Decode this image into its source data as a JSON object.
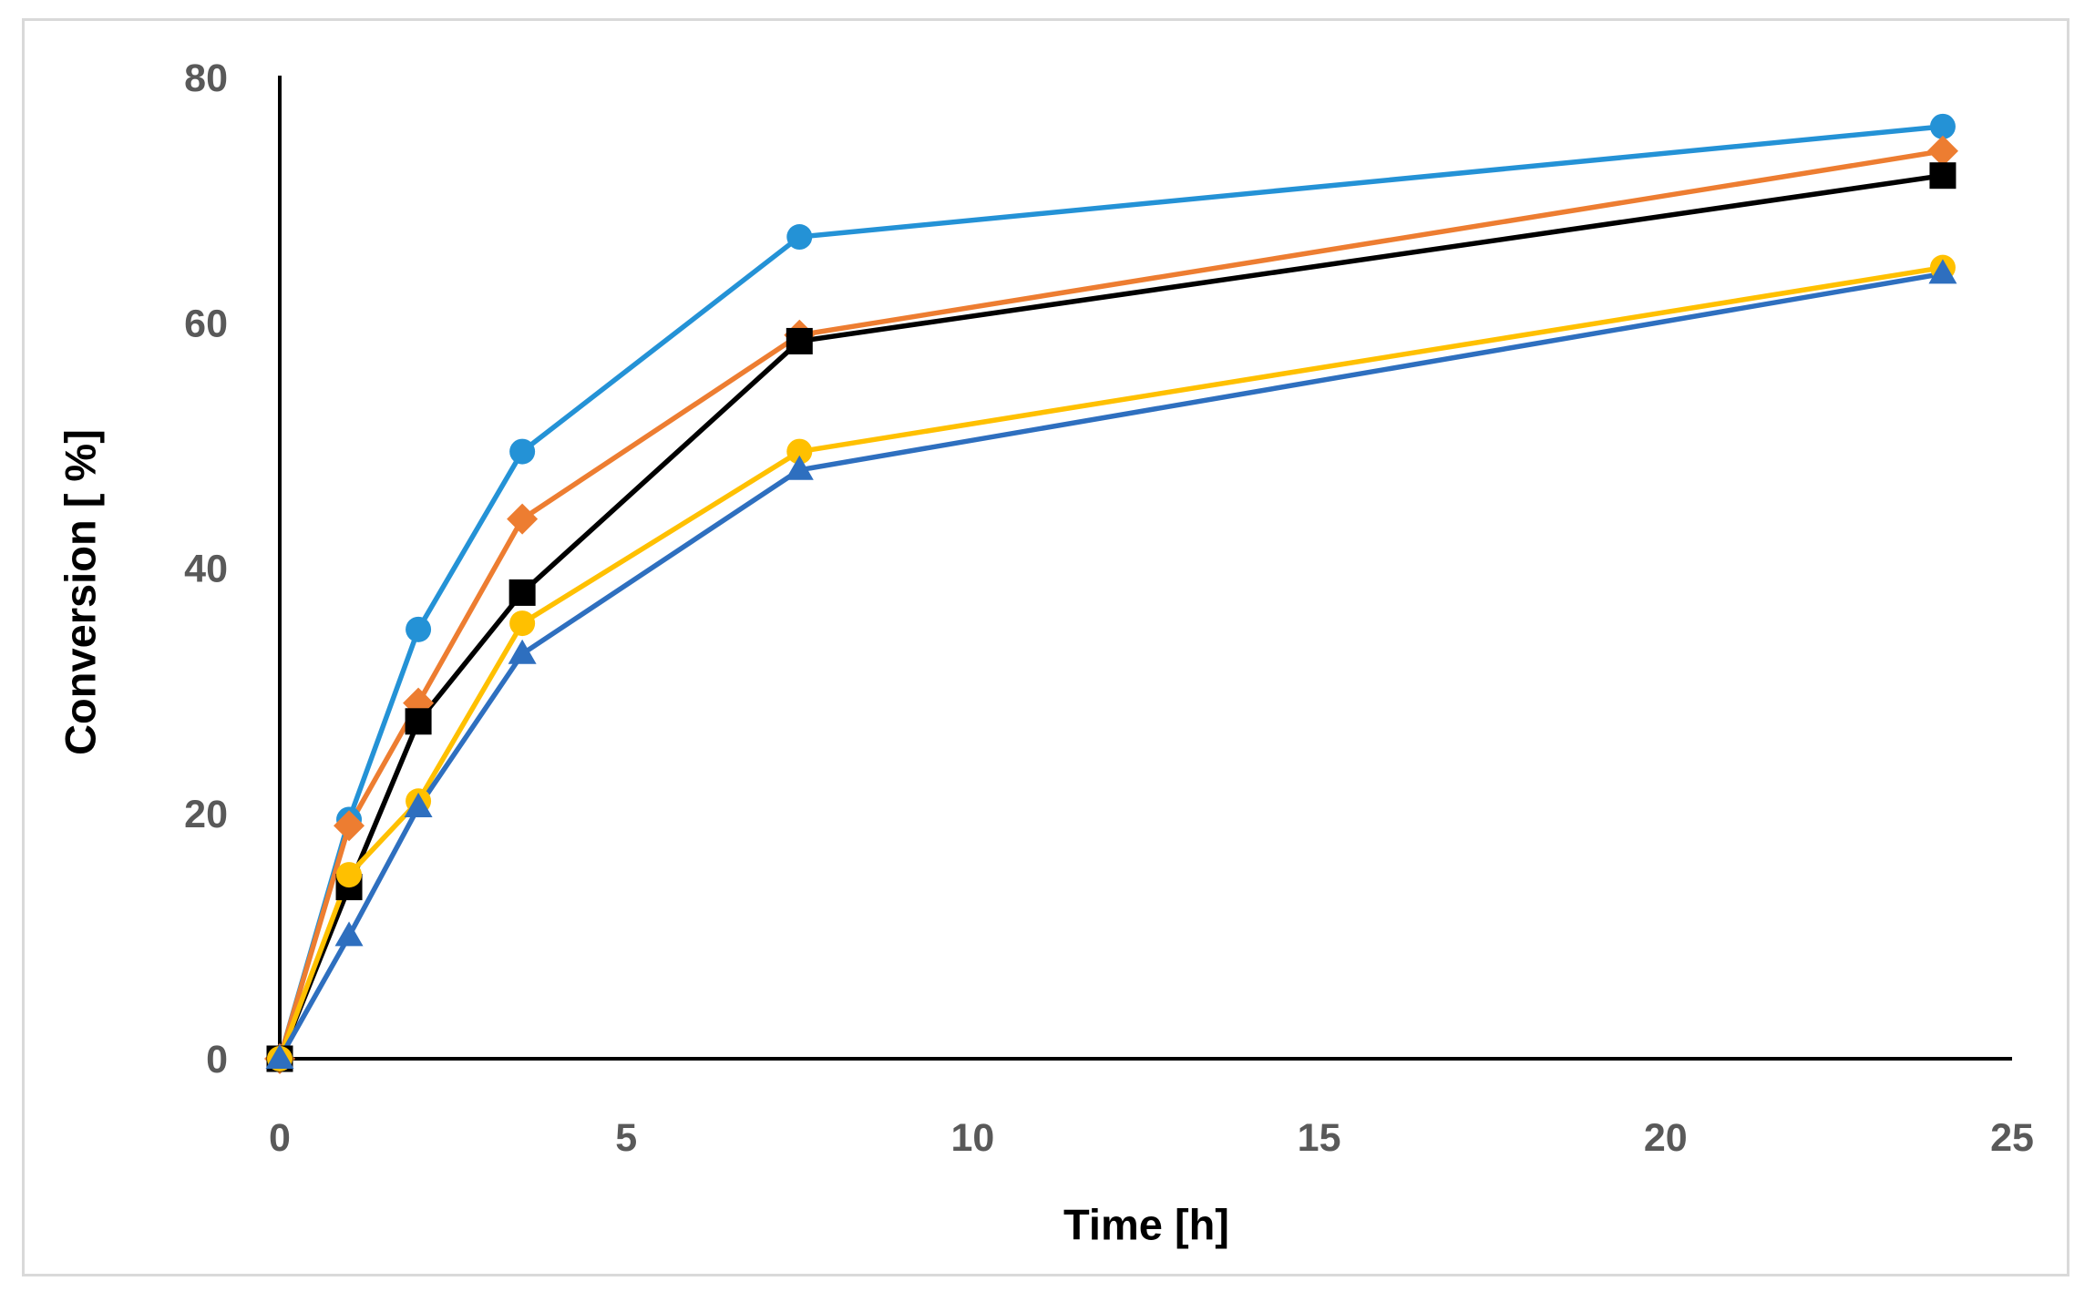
{
  "frame": {
    "border_color": "#d9d9d9",
    "background_color": "#ffffff"
  },
  "chart_data": {
    "type": "line",
    "title": "",
    "xlabel": "Time [h]",
    "ylabel": "Conversion [ %]",
    "xlim": [
      0,
      25
    ],
    "ylim": [
      0,
      80
    ],
    "x_ticks": [
      0,
      5,
      10,
      15,
      20,
      25
    ],
    "y_ticks": [
      0,
      20,
      40,
      60,
      80
    ],
    "grid": false,
    "legend_position": "none",
    "tick_label_color": "#595959",
    "axis_line_color": "#000000",
    "x": [
      0,
      1,
      2,
      3.5,
      7.5,
      24
    ],
    "series": [
      {
        "name": "light-blue-circles",
        "marker": "circle",
        "color": "#2492d6",
        "values": [
          0,
          19.5,
          35,
          49.5,
          67,
          76
        ]
      },
      {
        "name": "orange-diamonds",
        "marker": "diamond",
        "color": "#ed7d31",
        "values": [
          0,
          19,
          29,
          44,
          59,
          74
        ]
      },
      {
        "name": "black-squares",
        "marker": "square",
        "color": "#000000",
        "values": [
          0,
          14,
          27.5,
          38,
          58.5,
          72
        ]
      },
      {
        "name": "yellow-circles",
        "marker": "circle",
        "color": "#ffc000",
        "values": [
          0,
          15,
          21,
          35.5,
          49.5,
          64.5
        ]
      },
      {
        "name": "blue-triangles",
        "marker": "triangle",
        "color": "#2e6fbf",
        "values": [
          0,
          10,
          20.5,
          33,
          48,
          64
        ]
      }
    ]
  }
}
